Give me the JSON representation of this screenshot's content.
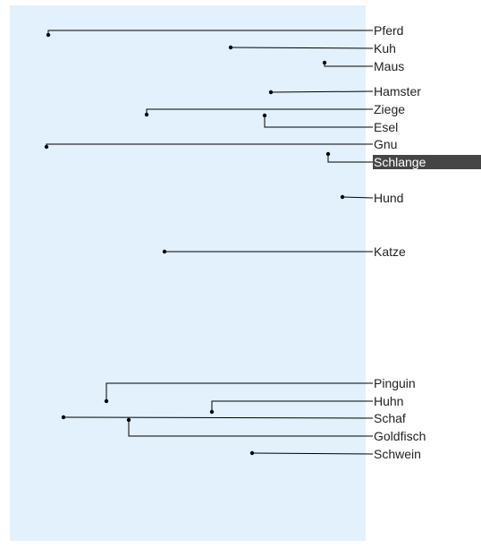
{
  "colors": {
    "canvas_bg": "#e2f1fb",
    "line": "#000000",
    "selected_bg": "#454545",
    "selected_fg": "#ffffff"
  },
  "nodes": [
    {
      "name": "node-pferd",
      "label": "Pferd"
    },
    {
      "name": "node-kuh",
      "label": "Kuh"
    },
    {
      "name": "node-maus",
      "label": "Maus"
    },
    {
      "name": "node-hamster",
      "label": "Hamster"
    },
    {
      "name": "node-ziege",
      "label": "Ziege"
    },
    {
      "name": "node-esel",
      "label": "Esel"
    },
    {
      "name": "node-gnu",
      "label": "Gnu"
    },
    {
      "name": "node-schlange",
      "label": "Schlange",
      "selected": true
    },
    {
      "name": "node-hund",
      "label": "Hund"
    },
    {
      "name": "node-katze",
      "label": "Katze"
    },
    {
      "name": "node-pinguin",
      "label": "Pinguin"
    },
    {
      "name": "node-huhn",
      "label": "Huhn"
    },
    {
      "name": "node-schaf",
      "label": "Schaf"
    },
    {
      "name": "node-goldfisch",
      "label": "Goldfisch"
    },
    {
      "name": "node-schwein",
      "label": "Schwein"
    }
  ]
}
